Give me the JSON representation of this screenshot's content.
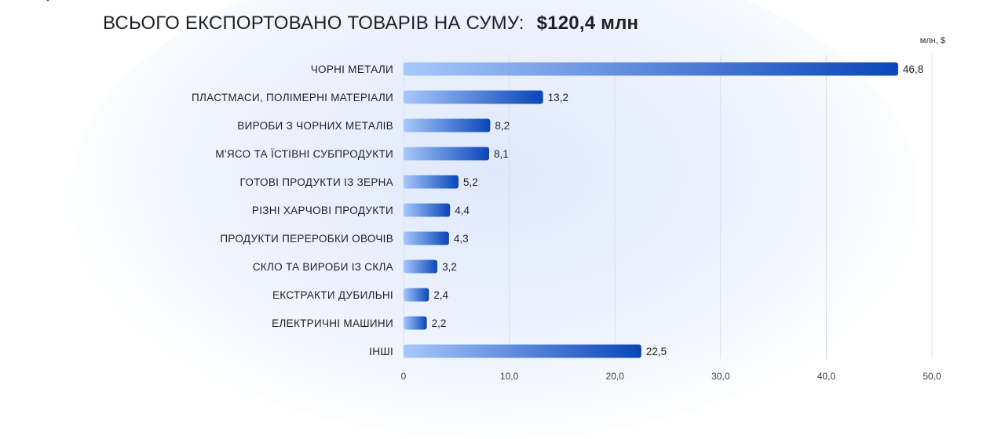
{
  "header": {
    "title_lead": "ВСЬОГО ЕКСПОРТОВАНО ТОВАРІВ НА СУМУ:",
    "title_total": "$120,4 млн",
    "unit": "млн, $"
  },
  "colors": {
    "bar_start": "#a8c8fb",
    "bar_end": "#0a46b9",
    "text": "#1e2027",
    "grid": "#d9e0ec"
  },
  "chart_data": {
    "type": "bar",
    "orientation": "horizontal",
    "title": "ВСЬОГО ЕКСПОРТОВАНО ТОВАРІВ НА СУМУ: $120,4 млн",
    "unit_label": "млн, $",
    "categories": [
      "ЧОРНІ МЕТАЛИ",
      "ПЛАСТМАСИ, ПОЛІМЕРНІ МАТЕРІАЛИ",
      "ВИРОБИ З ЧОРНИХ МЕТАЛІВ",
      "М'ЯСО ТА ЇСТІВНІ СУБПРОДУКТИ",
      "ГОТОВІ ПРОДУКТИ ІЗ ЗЕРНА",
      "РІЗНІ ХАРЧОВІ ПРОДУКТИ",
      "ПРОДУКТИ ПЕРЕРОБКИ ОВОЧІВ",
      "СКЛО ТА ВИРОБИ ІЗ СКЛА",
      "ЕКСТРАКТИ ДУБИЛЬНІ",
      "ЕЛЕКТРИЧНІ МАШИНИ",
      "ІНШІ"
    ],
    "values": [
      46.8,
      13.2,
      8.2,
      8.1,
      5.2,
      4.4,
      4.3,
      3.2,
      2.4,
      2.2,
      22.5
    ],
    "value_labels": [
      "46,8",
      "13,2",
      "8,2",
      "8,1",
      "5,2",
      "4,4",
      "4,3",
      "3,2",
      "2,4",
      "2,2",
      "22,5"
    ],
    "xlim": [
      0,
      50
    ],
    "ticks": [
      0,
      10,
      20,
      30,
      40,
      50
    ],
    "tick_labels": [
      "0",
      "10,0",
      "20,0",
      "30,0",
      "40,0",
      "50,0"
    ],
    "grid": true
  }
}
